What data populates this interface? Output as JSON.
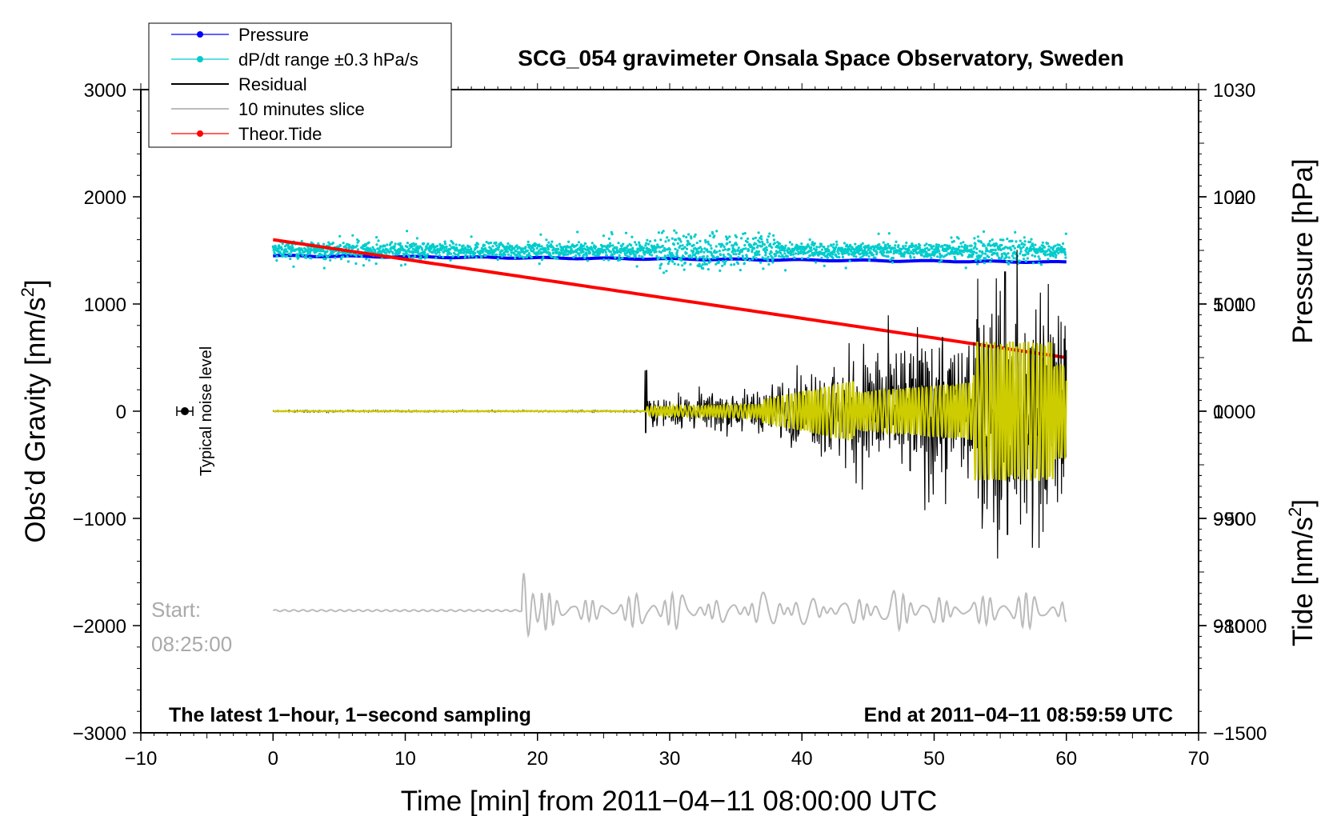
{
  "chart_data": {
    "type": "line",
    "title": "SCG_054 gravimeter Onsala Space Observatory, Sweden",
    "xlabel": "Time [min] from 2011−04−11 08:00:00 UTC",
    "ylabel_left": "Obs’d Gravity [nm/s",
    "ylabel_left_sup": "2",
    "ylabel_left_end": "]",
    "ylabel_right_top": "Pressure [hPa]",
    "ylabel_right_bottom": "Tide [nm/s",
    "ylabel_right_bottom_sup": "2",
    "ylabel_right_bottom_end": "]",
    "xlim": [
      -10,
      70
    ],
    "ylim": [
      -3000,
      3000
    ],
    "x_ticks": [
      -10,
      0,
      10,
      20,
      30,
      40,
      50,
      60,
      70
    ],
    "x_tick_labels": [
      "−10",
      "0",
      "10",
      "20",
      "30",
      "40",
      "50",
      "60",
      "70"
    ],
    "y_ticks": [
      3000,
      2000,
      1000,
      0,
      -1000,
      -2000,
      -3000
    ],
    "y_tick_labels": [
      "3000",
      "2000",
      "1000",
      "0",
      "−1000",
      "−2000",
      "−3000"
    ],
    "pressure_axis": {
      "range_hPa": [
        970,
        1030
      ],
      "ticks": [
        1030,
        1020,
        1010,
        1000,
        990,
        980
      ],
      "tick_labels": [
        "1030",
        "1020",
        "1010",
        "1000",
        "990",
        "980"
      ]
    },
    "tide_axis": {
      "range_nm_s2": [
        -1500,
        1500
      ],
      "ticks": [
        1000,
        500,
        0,
        -500,
        -1000,
        -1500
      ],
      "tick_labels": [
        "1000",
        "500",
        "0",
        "−500",
        "−1000",
        "−1500"
      ]
    },
    "legend": {
      "placement": "top-left",
      "entries": [
        {
          "label": "Pressure",
          "color": "#0000ff",
          "marker": true
        },
        {
          "label": "dP/dt range ±0.3 hPa/s",
          "color": "#00cccc",
          "marker": true
        },
        {
          "label": "Residual",
          "color": "#000000",
          "marker": false
        },
        {
          "label": "10 minutes slice",
          "color": "#bbbbbb",
          "marker": false
        },
        {
          "label": "Theor.Tide",
          "color": "#ff0000",
          "marker": true
        }
      ]
    },
    "series": [
      {
        "name": "Pressure",
        "color": "#0000ff",
        "axis": "pressure_hPa",
        "x_range": [
          0,
          60
        ],
        "start_value": 1014.5,
        "end_value": 1013.9
      },
      {
        "name": "dP/dt range ±0.3 hPa/s",
        "color": "#00cccc",
        "axis": "gravity",
        "x_range": [
          0,
          60
        ],
        "baseline": 1500
      },
      {
        "name": "Residual",
        "color": "#000000",
        "axis": "gravity",
        "x_range": [
          0,
          60
        ],
        "quake_onset_min": 28.2,
        "max_value": 1300,
        "min_value": -1150
      },
      {
        "name": "Residual (filtered)",
        "color": "#cccc00",
        "axis": "gravity",
        "x_range": [
          0,
          60
        ]
      },
      {
        "name": "10 minutes slice",
        "color": "#bbbbbb",
        "axis": "gravity",
        "x_range": [
          0,
          60
        ],
        "baseline": -1860
      },
      {
        "name": "Theor.Tide",
        "color": "#ff0000",
        "axis": "tide",
        "x_range": [
          0,
          60
        ],
        "start_value": 800,
        "end_value": 250
      }
    ],
    "noise_marker": {
      "x": -7,
      "y": 0,
      "label": "Typical noise level"
    },
    "annotations": {
      "start_label": "Start:",
      "start_time": "08:25:00",
      "bottom_left": "The latest 1−hour, 1−second sampling",
      "bottom_right": "End at 2011−04−11 08:59:59 UTC"
    }
  }
}
